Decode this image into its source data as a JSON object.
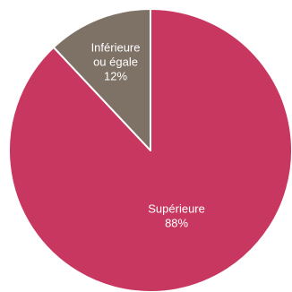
{
  "chart_data": {
    "type": "pie",
    "title": "",
    "slices": [
      {
        "label_lines": [
          "Supérieure",
          "88%"
        ],
        "value": 88,
        "color": "#c8375f"
      },
      {
        "label_lines": [
          "Inférieure",
          "ou égale",
          "12%"
        ],
        "value": 12,
        "color": "#7e7166"
      }
    ],
    "start": "top",
    "direction": "clockwise",
    "legend": "none"
  }
}
